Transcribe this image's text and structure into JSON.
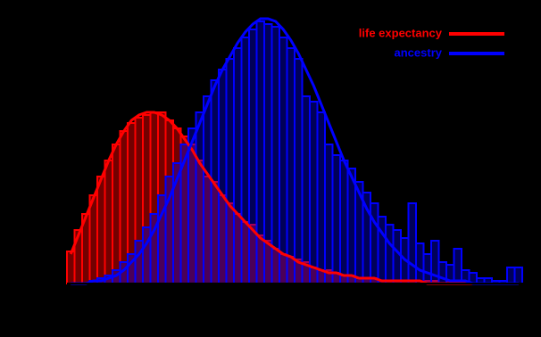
{
  "chart_data": {
    "type": "histogram",
    "bins": [
      0,
      1,
      2,
      3,
      4,
      5,
      6,
      7,
      8,
      9,
      10,
      11,
      12,
      13,
      14,
      15,
      16,
      17,
      18,
      19,
      20,
      21,
      22,
      23,
      24,
      25,
      26,
      27,
      28,
      29,
      30,
      31,
      32,
      33,
      34,
      35,
      36,
      37,
      38,
      39,
      40,
      41,
      42,
      43,
      44,
      45,
      46,
      47,
      48,
      49,
      50,
      51,
      52,
      53,
      54,
      55,
      56,
      57,
      58,
      59,
      60
    ],
    "xlim": [
      0,
      60
    ],
    "ylim": [
      0,
      100
    ],
    "fit_x": [
      0.5,
      1.5,
      2.5,
      3.5,
      4.5,
      5.5,
      6.5,
      7.5,
      8.5,
      9.5,
      10.5,
      11.5,
      12.5,
      13.5,
      14.5,
      15.5,
      16.5,
      17.5,
      18.5,
      19.5,
      20.5,
      21.5,
      22.5,
      23.5,
      24.5,
      25.5,
      26.5,
      27.5,
      28.5,
      29.5,
      30.5,
      31.5,
      32.5,
      33.5,
      34.5,
      35.5,
      36.5,
      37.5,
      38.5,
      39.5,
      40.5,
      41.5,
      42.5,
      43.5,
      44.5,
      45.5,
      46.5,
      47.5,
      48.5,
      49.5,
      50.5,
      51.5,
      52.5,
      53.5,
      54.5,
      55.5,
      56.5,
      57.5,
      58.5,
      59.5
    ],
    "legend": "upper right",
    "series": [
      {
        "name": "life expectancy",
        "color": "#ff0000",
        "fill": "rgba(255,0,0,0.45)",
        "values": [
          12,
          20,
          26,
          33,
          40,
          46,
          52,
          57,
          60,
          62,
          63,
          64,
          64,
          61,
          58,
          55,
          52,
          46,
          40,
          38,
          33,
          30,
          26,
          23,
          22,
          18,
          16,
          13,
          11,
          10,
          9,
          8,
          6,
          5,
          5,
          4,
          3,
          3,
          2,
          2,
          2,
          1,
          1,
          1,
          1,
          1,
          0,
          1,
          1,
          0,
          1,
          0,
          0,
          0,
          0,
          0,
          0,
          0,
          0,
          0
        ],
        "fit": [
          11,
          18,
          25,
          32,
          39,
          46,
          52,
          57,
          61,
          63,
          64,
          64,
          63,
          61,
          58,
          54,
          50,
          45,
          41,
          37,
          33,
          29,
          26,
          23,
          20,
          17,
          15,
          13,
          11,
          10,
          8,
          7,
          6,
          5,
          4,
          4,
          3,
          3,
          2,
          2,
          2,
          1,
          1,
          1,
          1,
          1,
          1,
          0,
          0,
          0,
          0,
          0,
          0,
          0,
          0,
          0,
          0,
          0,
          0,
          0
        ]
      },
      {
        "name": "ancestry",
        "color": "#0000ff",
        "fill": "rgba(0,0,255,0.35)",
        "values": [
          0,
          0,
          0,
          1,
          2,
          3,
          5,
          8,
          11,
          16,
          21,
          26,
          33,
          40,
          45,
          52,
          58,
          64,
          70,
          76,
          80,
          84,
          88,
          92,
          95,
          98,
          97,
          96,
          92,
          88,
          84,
          70,
          68,
          64,
          52,
          48,
          46,
          43,
          38,
          34,
          30,
          25,
          22,
          20,
          17,
          30,
          15,
          11,
          16,
          8,
          7,
          13,
          5,
          4,
          2,
          2,
          1,
          1,
          6,
          6
        ],
        "fit": [
          0,
          0,
          0,
          1,
          1,
          2,
          3,
          5,
          8,
          11,
          15,
          20,
          26,
          32,
          39,
          46,
          53,
          60,
          67,
          74,
          80,
          85,
          90,
          94,
          97,
          99,
          99,
          98,
          95,
          91,
          86,
          80,
          74,
          67,
          60,
          53,
          46,
          40,
          34,
          28,
          23,
          19,
          15,
          12,
          9,
          7,
          5,
          4,
          3,
          2,
          1,
          1,
          1,
          0,
          0,
          0,
          0,
          0,
          0,
          0
        ]
      }
    ]
  }
}
